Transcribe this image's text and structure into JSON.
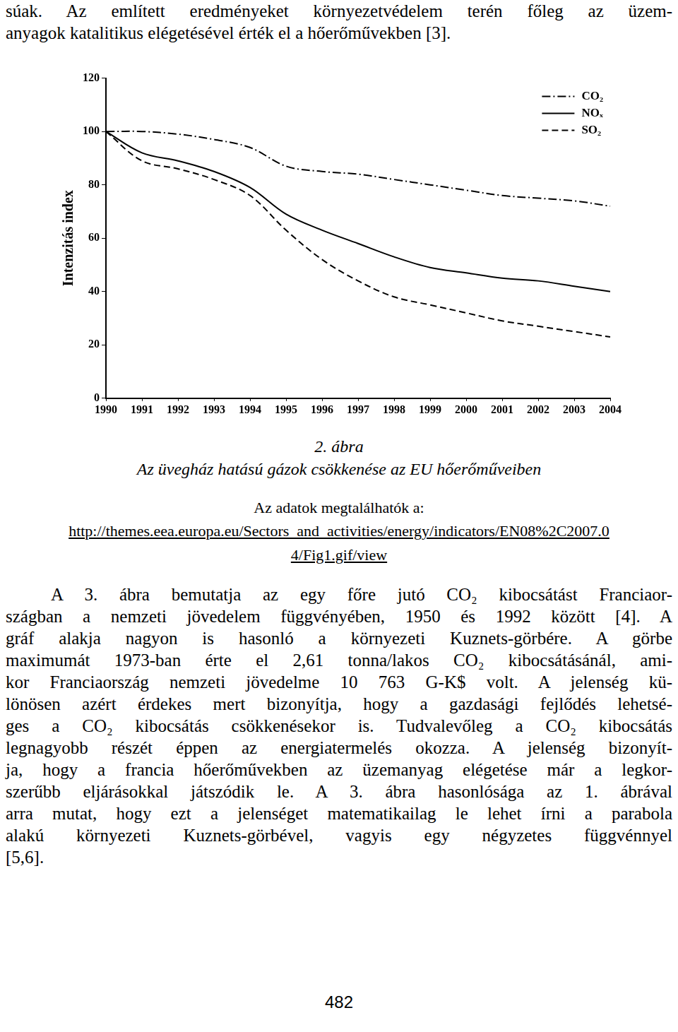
{
  "intro": {
    "lines": [
      "súak. Az említett eredményeket környezetvédelem terén főleg az üzem-",
      "anyagok katalitikus elégetésével érték el a hőerőművekben [3]."
    ]
  },
  "chart_data": {
    "type": "line",
    "y_label": "Intenzitás index",
    "categories": [
      "1990",
      "1991",
      "1992",
      "1993",
      "1994",
      "1995",
      "1996",
      "1997",
      "1998",
      "1999",
      "2000",
      "2001",
      "2002",
      "2003",
      "2004"
    ],
    "series": [
      {
        "name": "CO₂",
        "color": "#000000",
        "line_style": "dashdot",
        "values": [
          100,
          100,
          99,
          97,
          94,
          87,
          85,
          84,
          82,
          80,
          78,
          76,
          75,
          74,
          72
        ]
      },
      {
        "name": "NOₓ",
        "color": "#000000",
        "line_style": "solid",
        "values": [
          100,
          92,
          89,
          85,
          79,
          69,
          63,
          58,
          53,
          49,
          47,
          45,
          44,
          42,
          40
        ]
      },
      {
        "name": "SO₂",
        "color": "#000000",
        "line_style": "dashed",
        "values": [
          100,
          89,
          86,
          82,
          76,
          63,
          52,
          44,
          38,
          35,
          32,
          29,
          27,
          25,
          23
        ]
      }
    ],
    "ylim": [
      0,
      120
    ],
    "yticks": [
      0,
      20,
      40,
      60,
      80,
      100,
      120
    ],
    "grid": false,
    "legend": "upper right"
  },
  "caption": {
    "number": "2. ábra",
    "title": "Az üvegház hatású gázok csökkenése az EU hőerőműveiben",
    "source_label": "Az adatok megtalálhatók a:",
    "source_url_lines": [
      "http://themes.eea.europa.eu/Sectors_and_activities/energy/indicators/EN08%2C2007.0",
      "4/Fig1.gif/view"
    ]
  },
  "body": {
    "lines": [
      "A 3. ábra bemutatja az egy főre jutó CO₂ kibocsátást Franciaor-",
      "szágban a nemzeti jövedelem függvényében, 1950 és 1992 között [4]. A",
      "gráf alakja nagyon is hasonló a környezeti Kuznets-görbére. A görbe",
      "maximumát 1973-ban érte el 2,61 tonna/lakos CO₂ kibocsátásánál, ami-",
      "kor Franciaország nemzeti jövedelme 10 763 G-K$ volt. A jelenség kü-",
      "lönösen azért érdekes mert bizonyítja, hogy a gazdasági fejlődés lehetsé-",
      "ges a CO₂ kibocsátás csökkenésekor is. Tudvalevőleg a CO₂ kibocsátás",
      "legnagyobb részét éppen az energiatermelés okozza. A jelenség bizonyít-",
      "ja, hogy a francia hőerőművekben az üzemanyag elégetése már a legkor-",
      "szerűbb eljárásokkal játszódik le. A 3. ábra hasonlósága az 1. ábrával",
      "arra mutat, hogy ezt a jelenséget matematikailag le lehet írni a parabola",
      "alakú környezeti Kuznets-görbével, vagyis egy négyzetes függvénnyel",
      "[5,6]."
    ]
  },
  "page_number": "482"
}
